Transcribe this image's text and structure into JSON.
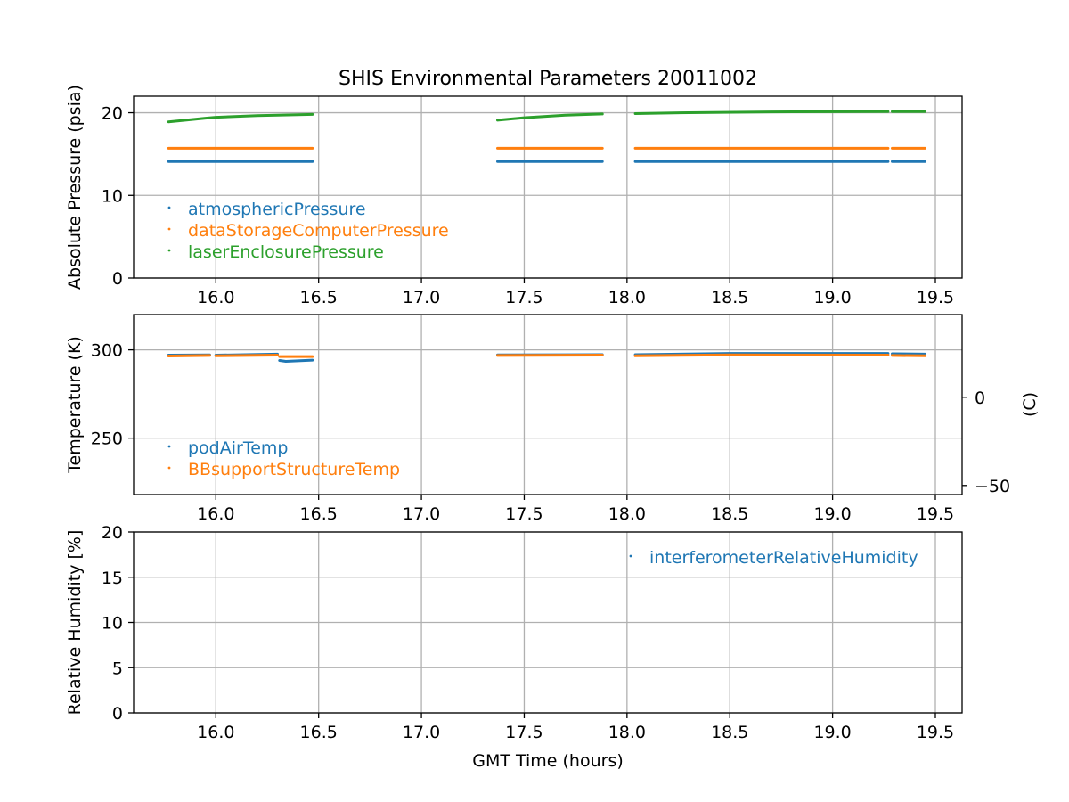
{
  "chart_data": {
    "title": "SHIS Environmental Parameters 20011002",
    "xlabel": "GMT Time (hours)",
    "xlim": [
      15.6,
      19.63
    ],
    "xticks": [
      16.0,
      16.5,
      17.0,
      17.5,
      18.0,
      18.5,
      19.0,
      19.5
    ],
    "xtick_labels": [
      "16.0",
      "16.5",
      "17.0",
      "17.5",
      "18.0",
      "18.5",
      "19.0",
      "19.5"
    ],
    "grid": true,
    "panels": [
      {
        "type": "scatter",
        "ylabel": "Absolute Pressure (psia)",
        "ylim": [
          0,
          22
        ],
        "yticks": [
          0,
          10,
          20
        ],
        "ytick_labels": [
          "0",
          "10",
          "20"
        ],
        "legend_position": "lower-left",
        "series": [
          {
            "name": "atmosphericPressure",
            "color": "#1f77b4",
            "segments": [
              {
                "x": [
                  15.77,
                  16.47
                ],
                "y": [
                  14.1,
                  14.1
                ]
              },
              {
                "x": [
                  17.37,
                  17.88
                ],
                "y": [
                  14.1,
                  14.1
                ]
              },
              {
                "x": [
                  18.04,
                  19.27
                ],
                "y": [
                  14.1,
                  14.1
                ]
              },
              {
                "x": [
                  19.29,
                  19.45
                ],
                "y": [
                  14.1,
                  14.1
                ]
              }
            ]
          },
          {
            "name": "dataStorageComputerPressure",
            "color": "#ff7f0e",
            "segments": [
              {
                "x": [
                  15.77,
                  16.47
                ],
                "y": [
                  15.7,
                  15.7
                ]
              },
              {
                "x": [
                  17.37,
                  17.88
                ],
                "y": [
                  15.7,
                  15.7
                ]
              },
              {
                "x": [
                  18.04,
                  19.27
                ],
                "y": [
                  15.7,
                  15.7
                ]
              },
              {
                "x": [
                  19.29,
                  19.45
                ],
                "y": [
                  15.7,
                  15.7
                ]
              }
            ]
          },
          {
            "name": "laserEnclosurePressure",
            "color": "#2ca02c",
            "segments": [
              {
                "x": [
                  15.77,
                  15.95,
                  16.0,
                  16.2,
                  16.47
                ],
                "y": [
                  18.9,
                  19.35,
                  19.45,
                  19.65,
                  19.8
                ]
              },
              {
                "x": [
                  17.37,
                  17.5,
                  17.7,
                  17.88
                ],
                "y": [
                  19.1,
                  19.4,
                  19.7,
                  19.85
                ]
              },
              {
                "x": [
                  18.04,
                  18.3,
                  18.7,
                  19.27
                ],
                "y": [
                  19.9,
                  20.0,
                  20.1,
                  20.15
                ]
              },
              {
                "x": [
                  19.29,
                  19.45
                ],
                "y": [
                  20.15,
                  20.15
                ]
              }
            ]
          }
        ]
      },
      {
        "type": "scatter",
        "ylabel": "Temperature (K)",
        "ylim": [
          218,
          320
        ],
        "yticks": [
          250,
          300
        ],
        "ytick_labels": [
          "250",
          "300"
        ],
        "ylabel_right": "(C)",
        "yticks_right": [
          0,
          -50
        ],
        "ytick_labels_right": [
          "0",
          "−50"
        ],
        "legend_position": "lower-left",
        "series": [
          {
            "name": "podAirTemp",
            "color": "#1f77b4",
            "segments": [
              {
                "x": [
                  15.77,
                  15.97
                ],
                "y": [
                  297.0,
                  297.2
                ]
              },
              {
                "x": [
                  16.0,
                  16.3
                ],
                "y": [
                  297.0,
                  297.6
                ]
              },
              {
                "x": [
                  16.31,
                  16.34,
                  16.47
                ],
                "y": [
                  294.0,
                  293.5,
                  294.2
                ]
              },
              {
                "x": [
                  17.37,
                  17.88
                ],
                "y": [
                  297.2,
                  297.3
                ]
              },
              {
                "x": [
                  18.04,
                  18.5,
                  19.27
                ],
                "y": [
                  297.3,
                  298.0,
                  298.0
                ]
              },
              {
                "x": [
                  19.29,
                  19.45
                ],
                "y": [
                  297.8,
                  297.6
                ]
              }
            ]
          },
          {
            "name": "BBsupportStructureTemp",
            "color": "#ff7f0e",
            "segments": [
              {
                "x": [
                  15.77,
                  15.97
                ],
                "y": [
                  296.5,
                  296.8
                ]
              },
              {
                "x": [
                  16.0,
                  16.3
                ],
                "y": [
                  296.6,
                  297.0
                ]
              },
              {
                "x": [
                  16.31,
                  16.47
                ],
                "y": [
                  296.2,
                  296.2
                ]
              },
              {
                "x": [
                  17.37,
                  17.88
                ],
                "y": [
                  296.8,
                  297.0
                ]
              },
              {
                "x": [
                  18.04,
                  18.5,
                  19.27
                ],
                "y": [
                  296.6,
                  297.2,
                  297.0
                ]
              },
              {
                "x": [
                  19.29,
                  19.45
                ],
                "y": [
                  296.8,
                  296.6
                ]
              }
            ]
          }
        ]
      },
      {
        "type": "scatter",
        "ylabel": "Relative Humidity [%]",
        "ylim": [
          0,
          20
        ],
        "yticks": [
          0,
          5,
          10,
          15,
          20
        ],
        "ytick_labels": [
          "0",
          "5",
          "10",
          "15",
          "20"
        ],
        "legend_position": "upper-right",
        "series": [
          {
            "name": "interferometerRelativeHumidity",
            "color": "#1f77b4",
            "segments": []
          }
        ]
      }
    ]
  }
}
